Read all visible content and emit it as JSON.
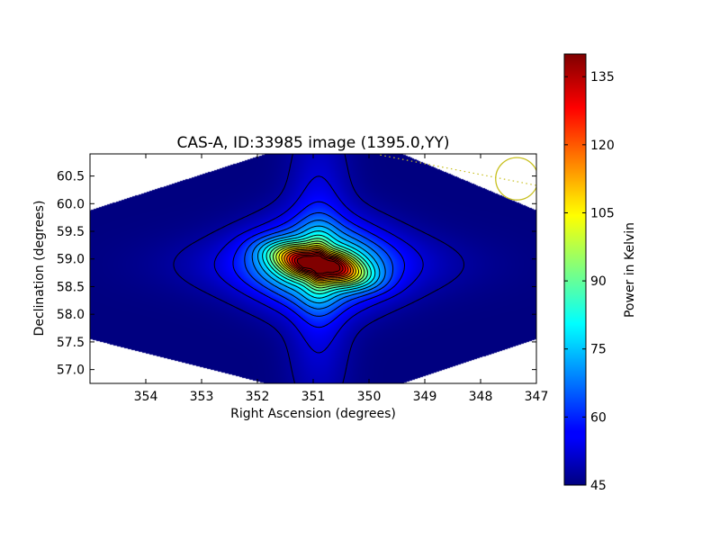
{
  "chart_data": {
    "type": "heatmap",
    "title": "CAS-A, ID:33985 image (1395.0,YY)",
    "xlabel": "Right Ascension (degrees)",
    "ylabel": "Declination (degrees)",
    "xlim": [
      355.0,
      347.0
    ],
    "ylim": [
      56.75,
      60.9
    ],
    "x_ticks": [
      354,
      353,
      352,
      351,
      350,
      349,
      348,
      347
    ],
    "y_ticks": [
      57.0,
      57.5,
      58.0,
      58.5,
      59.0,
      59.5,
      60.0,
      60.5
    ],
    "colorbar": {
      "label": "Power in Kelvin",
      "range": [
        45,
        140
      ],
      "ticks": [
        45,
        60,
        75,
        90,
        105,
        120,
        135
      ],
      "colormap": "jet"
    },
    "field_edge": [
      [
        355.0,
        59.88
      ],
      [
        351.85,
        60.9
      ],
      [
        349.4,
        60.9
      ],
      [
        347.0,
        59.88
      ],
      [
        347.0,
        57.55
      ],
      [
        349.4,
        56.75
      ],
      [
        351.85,
        56.75
      ],
      [
        355.0,
        57.55
      ]
    ],
    "peak_ra": 350.9,
    "peak_dec": 58.9,
    "peak_value": 140,
    "background_value": 45,
    "contour_levels": [
      48,
      53,
      58,
      63,
      68,
      73,
      78,
      83,
      88,
      93,
      98,
      103,
      108,
      113,
      118,
      123,
      128,
      133,
      138
    ],
    "beam_marker": {
      "ra": 347.35,
      "dec": 60.45,
      "radius_deg": 0.38,
      "color": "#c8c020"
    },
    "dotted_line": {
      "from": [
        349.8,
        60.88
      ],
      "to": [
        347.0,
        60.33
      ],
      "color": "#c8c020"
    }
  }
}
